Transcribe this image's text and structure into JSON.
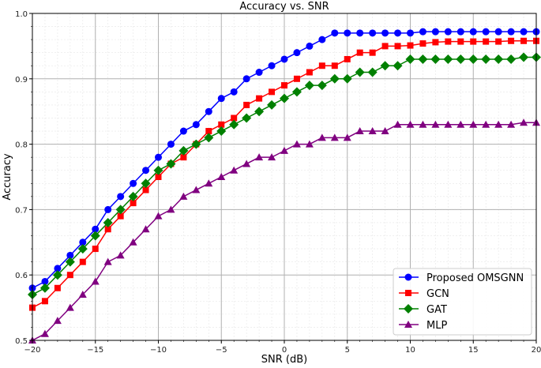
{
  "chart_data": {
    "type": "line",
    "title": "Accuracy vs. SNR",
    "xlabel": "SNR (dB)",
    "ylabel": "Accuracy",
    "xlim": [
      -20,
      20
    ],
    "ylim": [
      0.5,
      1.0
    ],
    "xticks": [
      -20,
      -15,
      -10,
      -5,
      0,
      5,
      10,
      15,
      20
    ],
    "yticks": [
      0.5,
      0.6,
      0.7,
      0.8,
      0.9,
      1.0
    ],
    "grid": true,
    "minor_grid": true,
    "legend_position": "lower right",
    "x": [
      -20,
      -19,
      -18,
      -17,
      -16,
      -15,
      -14,
      -13,
      -12,
      -11,
      -10,
      -9,
      -8,
      -7,
      -6,
      -5,
      -4,
      -3,
      -2,
      -1,
      0,
      1,
      2,
      3,
      4,
      5,
      6,
      7,
      8,
      9,
      10,
      11,
      12,
      13,
      14,
      15,
      16,
      17,
      18,
      19,
      20
    ],
    "series": [
      {
        "name": "Proposed OMSGNN",
        "color": "#0000ff",
        "marker": "circle",
        "values": [
          0.58,
          0.59,
          0.61,
          0.63,
          0.65,
          0.67,
          0.7,
          0.72,
          0.74,
          0.76,
          0.78,
          0.8,
          0.82,
          0.83,
          0.85,
          0.87,
          0.88,
          0.9,
          0.91,
          0.92,
          0.93,
          0.94,
          0.95,
          0.96,
          0.97,
          0.97,
          0.97,
          0.97,
          0.97,
          0.97,
          0.97,
          0.972,
          0.972,
          0.972,
          0.972,
          0.972,
          0.972,
          0.972,
          0.972,
          0.972,
          0.972
        ]
      },
      {
        "name": "GCN",
        "color": "#ff0000",
        "marker": "square",
        "values": [
          0.55,
          0.56,
          0.58,
          0.6,
          0.62,
          0.64,
          0.67,
          0.69,
          0.71,
          0.73,
          0.75,
          0.77,
          0.78,
          0.8,
          0.82,
          0.83,
          0.84,
          0.86,
          0.87,
          0.88,
          0.89,
          0.9,
          0.91,
          0.92,
          0.92,
          0.93,
          0.94,
          0.94,
          0.95,
          0.95,
          0.951,
          0.954,
          0.956,
          0.957,
          0.957,
          0.957,
          0.957,
          0.957,
          0.958,
          0.958,
          0.958
        ]
      },
      {
        "name": "GAT",
        "color": "#008000",
        "marker": "diamond",
        "values": [
          0.57,
          0.58,
          0.6,
          0.62,
          0.64,
          0.66,
          0.68,
          0.7,
          0.72,
          0.74,
          0.76,
          0.77,
          0.79,
          0.8,
          0.81,
          0.82,
          0.83,
          0.84,
          0.85,
          0.86,
          0.87,
          0.88,
          0.89,
          0.89,
          0.9,
          0.9,
          0.91,
          0.91,
          0.92,
          0.92,
          0.93,
          0.93,
          0.93,
          0.93,
          0.93,
          0.93,
          0.93,
          0.93,
          0.93,
          0.933,
          0.933
        ]
      },
      {
        "name": "MLP",
        "color": "#800080",
        "marker": "triangle",
        "values": [
          0.5,
          0.51,
          0.53,
          0.55,
          0.57,
          0.59,
          0.62,
          0.63,
          0.65,
          0.67,
          0.69,
          0.7,
          0.72,
          0.73,
          0.74,
          0.75,
          0.76,
          0.77,
          0.78,
          0.78,
          0.79,
          0.8,
          0.8,
          0.81,
          0.81,
          0.81,
          0.82,
          0.82,
          0.82,
          0.83,
          0.83,
          0.83,
          0.83,
          0.83,
          0.83,
          0.83,
          0.83,
          0.83,
          0.83,
          0.833,
          0.833
        ]
      }
    ]
  }
}
